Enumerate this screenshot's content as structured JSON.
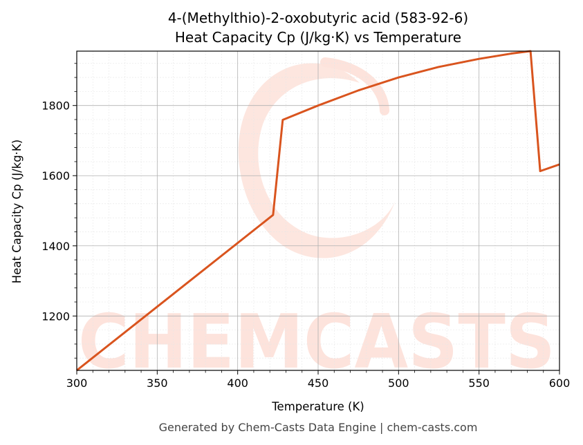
{
  "chart_data": {
    "type": "line",
    "title_line1": "4-(Methylthio)-2-oxobutyric acid (583-92-6)",
    "title_line2": "Heat Capacity Cp (J/kg·K) vs Temperature",
    "xlabel": "Temperature (K)",
    "ylabel": "Heat Capacity Cp (J/kg·K)",
    "xlim": [
      300,
      600
    ],
    "ylim": [
      1045,
      1955
    ],
    "x_ticks": [
      300,
      350,
      400,
      450,
      500,
      550,
      600
    ],
    "y_ticks": [
      1200,
      1400,
      1600,
      1800
    ],
    "grid": true,
    "series": [
      {
        "color": "#d9541e",
        "x": [
          300,
          422,
          428,
          450,
          475,
          500,
          525,
          550,
          570,
          582,
          588,
          600
        ],
        "y": [
          1045,
          1488,
          1759,
          1800,
          1843,
          1880,
          1910,
          1933,
          1948,
          1955,
          1613,
          1632
        ]
      }
    ]
  },
  "watermark": {
    "text": "CHEMCASTS"
  },
  "footer": {
    "text": "Generated by Chem-Casts Data Engine | chem-casts.com"
  }
}
